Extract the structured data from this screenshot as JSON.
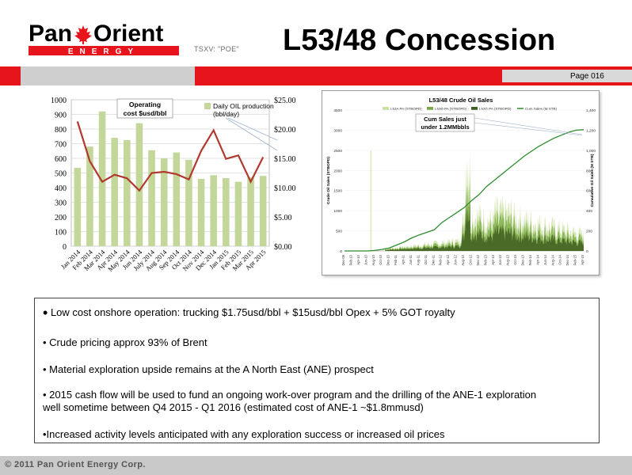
{
  "header": {
    "logo_word_left": "Pan",
    "logo_word_right": "Orient",
    "logo_sub": "ENERGY",
    "ticker": "TSXV: \"POE\"",
    "title": "L53/48 Concession",
    "page": "Page 016"
  },
  "colors": {
    "brand_red": "#e8141b",
    "band_gray": "#cfcfcf",
    "bar_green": "#c4d79b",
    "line_red": "#c0392b"
  },
  "chart_data": [
    {
      "type": "bar",
      "categories": [
        "Jan 2014",
        "Feb 2014",
        "Mar 2014",
        "Apr 2014",
        "May 2014",
        "Jun 2014",
        "July 2014",
        "Aug 2014",
        "Sep 2014",
        "Oct 2014",
        "Nov 2014",
        "Dec 2014",
        "Jan 2015",
        "Feb 2015",
        "Mar 2015",
        "Apr 2015"
      ],
      "left_ticks": [
        "1000",
        "900",
        "800",
        "700",
        "600",
        "500",
        "400",
        "300",
        "200",
        "100",
        "0"
      ],
      "right_ticks": [
        "$25.00",
        "$20.00",
        "$15.00",
        "$10.00",
        "$5.00",
        "$0.00"
      ],
      "ylim_left": [
        0,
        1000
      ],
      "ylim_right": [
        0,
        25
      ],
      "series": [
        {
          "name": "Daily OIL production (bbl/day)",
          "axis": "left",
          "kind": "bar",
          "values": [
            535,
            680,
            920,
            740,
            725,
            840,
            655,
            600,
            640,
            590,
            460,
            485,
            465,
            440,
            470,
            480
          ]
        },
        {
          "name": "Operating cost $usd/bbl",
          "axis": "right",
          "kind": "line",
          "values": [
            21.3,
            14.5,
            11.0,
            12.2,
            11.6,
            9.5,
            12.5,
            12.7,
            12.3,
            11.4,
            16.3,
            19.8,
            14.9,
            15.5,
            11.0,
            15.2
          ]
        }
      ],
      "annotations": {
        "cost_label": "Operating cost $usd/bbl",
        "prod_label_1": "Daily OIL production",
        "prod_label_2": "(bbl/day)"
      }
    },
    {
      "type": "area",
      "title": "L53/48 Crude Oil Sales",
      "ylabel": "Crude Oil Sales (STBOPD)",
      "ylabel_right": "Cumulative Oil Sales (M STB)",
      "left_ticks": [
        "3500",
        "3000",
        "2500",
        "2000",
        "1500",
        "1000",
        "500",
        "0"
      ],
      "right_ticks": [
        "1,400",
        "1,200",
        "1,000",
        "800",
        "600",
        "400",
        "200",
        "0"
      ],
      "ylim_left": [
        0,
        3500
      ],
      "ylim_right": [
        0,
        1400
      ],
      "legend": [
        "L53A PA (STBOPD)",
        "L53D PA (STBOPD)",
        "L53G PA (STBOPD)",
        "Cum Sales (M STB)"
      ],
      "x_ticks": [
        "Dec-09",
        "Feb-10",
        "Apr-10",
        "Jun-10",
        "Aug-10",
        "Oct-10",
        "Dec-10",
        "Feb-11",
        "Apr-11",
        "Jun-11",
        "Aug-11",
        "Oct-11",
        "Dec-11",
        "Feb-12",
        "Apr-12",
        "Jun-12",
        "Aug-12",
        "Oct-12",
        "Dec-12",
        "Feb-13",
        "Apr-13",
        "Jun-13",
        "Aug-13",
        "Oct-13",
        "Dec-13",
        "Feb-14",
        "Apr-14",
        "Jun-14",
        "Aug-14",
        "Oct-14",
        "Dec-14",
        "Feb-15",
        "Apr-15"
      ],
      "cum_sales": [
        0,
        0,
        0,
        0,
        5,
        15,
        30,
        60,
        90,
        130,
        160,
        185,
        210,
        280,
        330,
        380,
        430,
        500,
        560,
        640,
        700,
        760,
        820,
        880,
        940,
        990,
        1040,
        1080,
        1120,
        1150,
        1180,
        1200,
        1205
      ],
      "callout_1": "Cum Sales just",
      "callout_2": "under 1.2MMbbls"
    }
  ],
  "bullets": [
    "Low cost onshore operation: trucking $1.75usd/bbl + $15usd/bbl Opex + 5% GOT royalty",
    "• Crude pricing approx 93% of Brent",
    "• Material exploration upside remains at the A North East (ANE) prospect",
    "• 2015 cash flow will be used to fund an ongoing work-over program  and the drilling of the ANE-1 exploration",
    "well sometime between Q4 2015 - Q1 2016 (estimated cost of ANE-1 ~$1.8mmusd)",
    "•Increased activity levels anticipated with any exploration success or increased oil prices"
  ],
  "bullet_dot": "•",
  "footer": {
    "text": "© 2011 Pan Orient Energy Corp."
  }
}
